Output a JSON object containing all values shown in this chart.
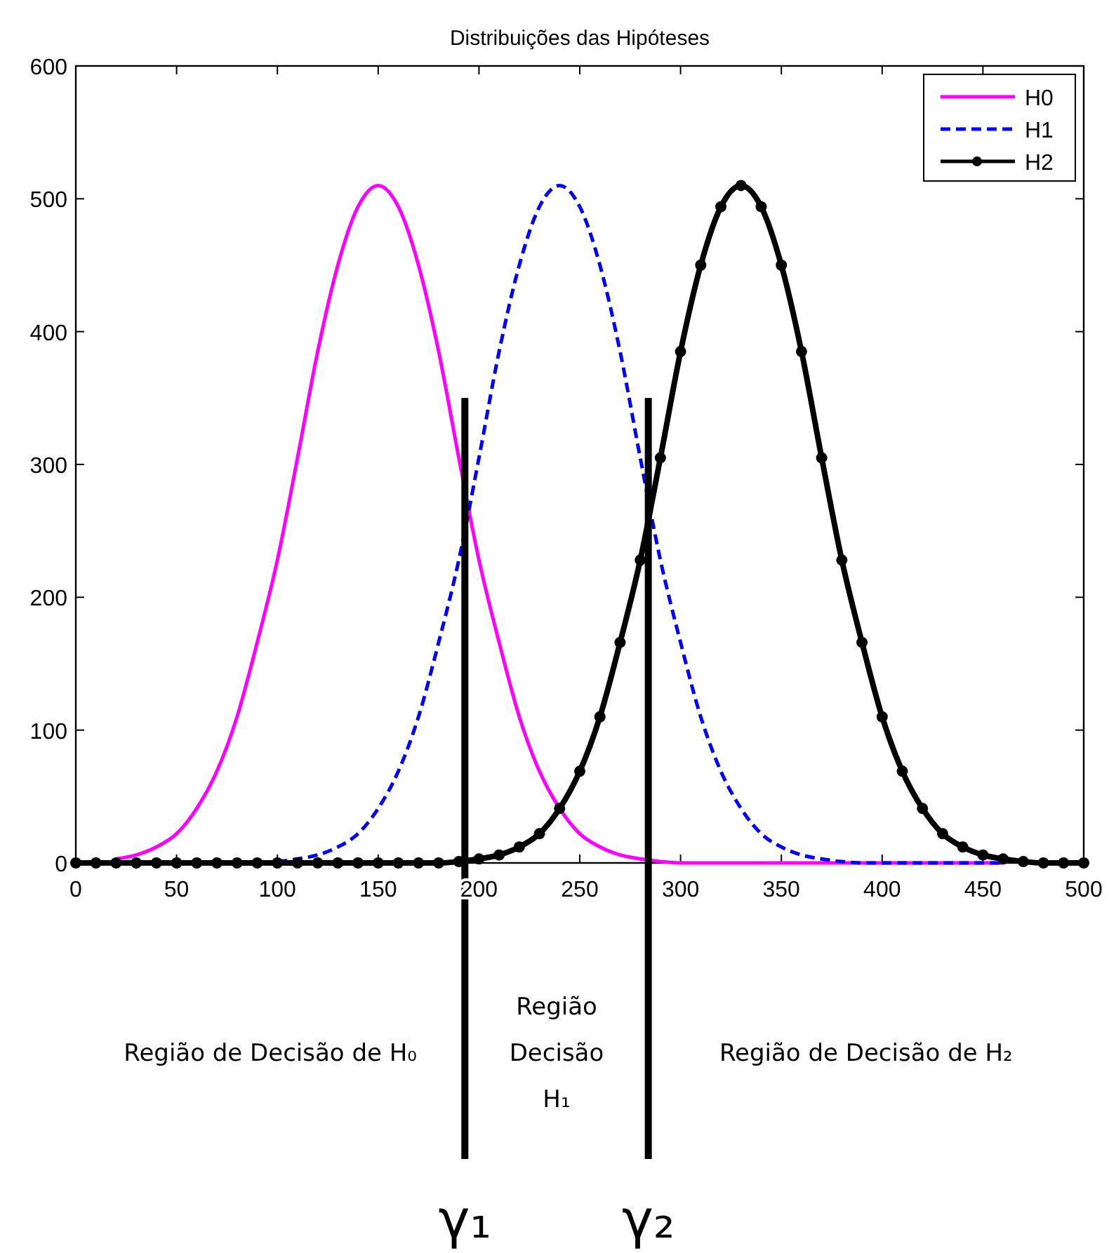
{
  "chart_data": {
    "type": "line",
    "title": "Distribuições das Hipóteses",
    "x": [
      0,
      10,
      20,
      30,
      40,
      50,
      60,
      70,
      80,
      90,
      100,
      110,
      120,
      130,
      140,
      150,
      160,
      170,
      180,
      190,
      200,
      210,
      220,
      230,
      240,
      250,
      260,
      270,
      280,
      290,
      300,
      310,
      320,
      330,
      340,
      350,
      360,
      370,
      380,
      390,
      400,
      410,
      420,
      430,
      440,
      450,
      460,
      470,
      480,
      490,
      500
    ],
    "series": [
      {
        "name": "H0",
        "color": "#ff00ff",
        "line_style": "solid",
        "marker": "none",
        "values": [
          null,
          null,
          3,
          6,
          12,
          22,
          41,
          69,
          110,
          166,
          228,
          305,
          385,
          450,
          494,
          510,
          494,
          450,
          385,
          305,
          228,
          166,
          110,
          69,
          41,
          22,
          12,
          6,
          3,
          1,
          0,
          0,
          0,
          0,
          0,
          0,
          0,
          0,
          0,
          0,
          0,
          0,
          0,
          0,
          0,
          0,
          0,
          null,
          null,
          null,
          null
        ]
      },
      {
        "name": "H1",
        "color": "#0000ff",
        "line_style": "dashed",
        "marker": "none",
        "values": [
          null,
          null,
          null,
          null,
          null,
          null,
          null,
          null,
          null,
          null,
          1,
          3,
          6,
          12,
          22,
          41,
          69,
          110,
          166,
          228,
          305,
          385,
          450,
          494,
          510,
          494,
          450,
          385,
          305,
          228,
          166,
          110,
          69,
          41,
          22,
          12,
          6,
          3,
          1,
          0,
          0,
          0,
          0,
          0,
          0,
          0,
          0,
          null,
          null,
          null,
          null
        ]
      },
      {
        "name": "H2",
        "color": "#000000",
        "line_style": "solid",
        "marker": "circle",
        "values": [
          0,
          0,
          0,
          0,
          0,
          0,
          0,
          0,
          0,
          0,
          0,
          0,
          0,
          0,
          0,
          0,
          0,
          0,
          0,
          1,
          3,
          6,
          12,
          22,
          41,
          69,
          110,
          166,
          228,
          305,
          385,
          450,
          494,
          510,
          494,
          450,
          385,
          305,
          228,
          166,
          110,
          69,
          41,
          22,
          12,
          6,
          3,
          1,
          0,
          0,
          0
        ]
      }
    ],
    "xlim": [
      0,
      500
    ],
    "xticks": [
      0,
      50,
      100,
      150,
      200,
      250,
      300,
      350,
      400,
      450,
      500
    ],
    "ylim": [
      0,
      600
    ],
    "yticks": [
      0,
      100,
      200,
      300,
      400,
      500,
      600
    ],
    "grid": false,
    "legend": "top right",
    "ref_lines": [
      {
        "axis": "x",
        "value": 193,
        "label": "γ₁",
        "color": "#000000"
      },
      {
        "axis": "x",
        "value": 284,
        "label": "γ₂",
        "color": "#000000"
      }
    ],
    "annotations": [
      "Região de Decisão de H₀",
      "Região Decisão H₁",
      "Região de Decisão de H₂"
    ]
  }
}
